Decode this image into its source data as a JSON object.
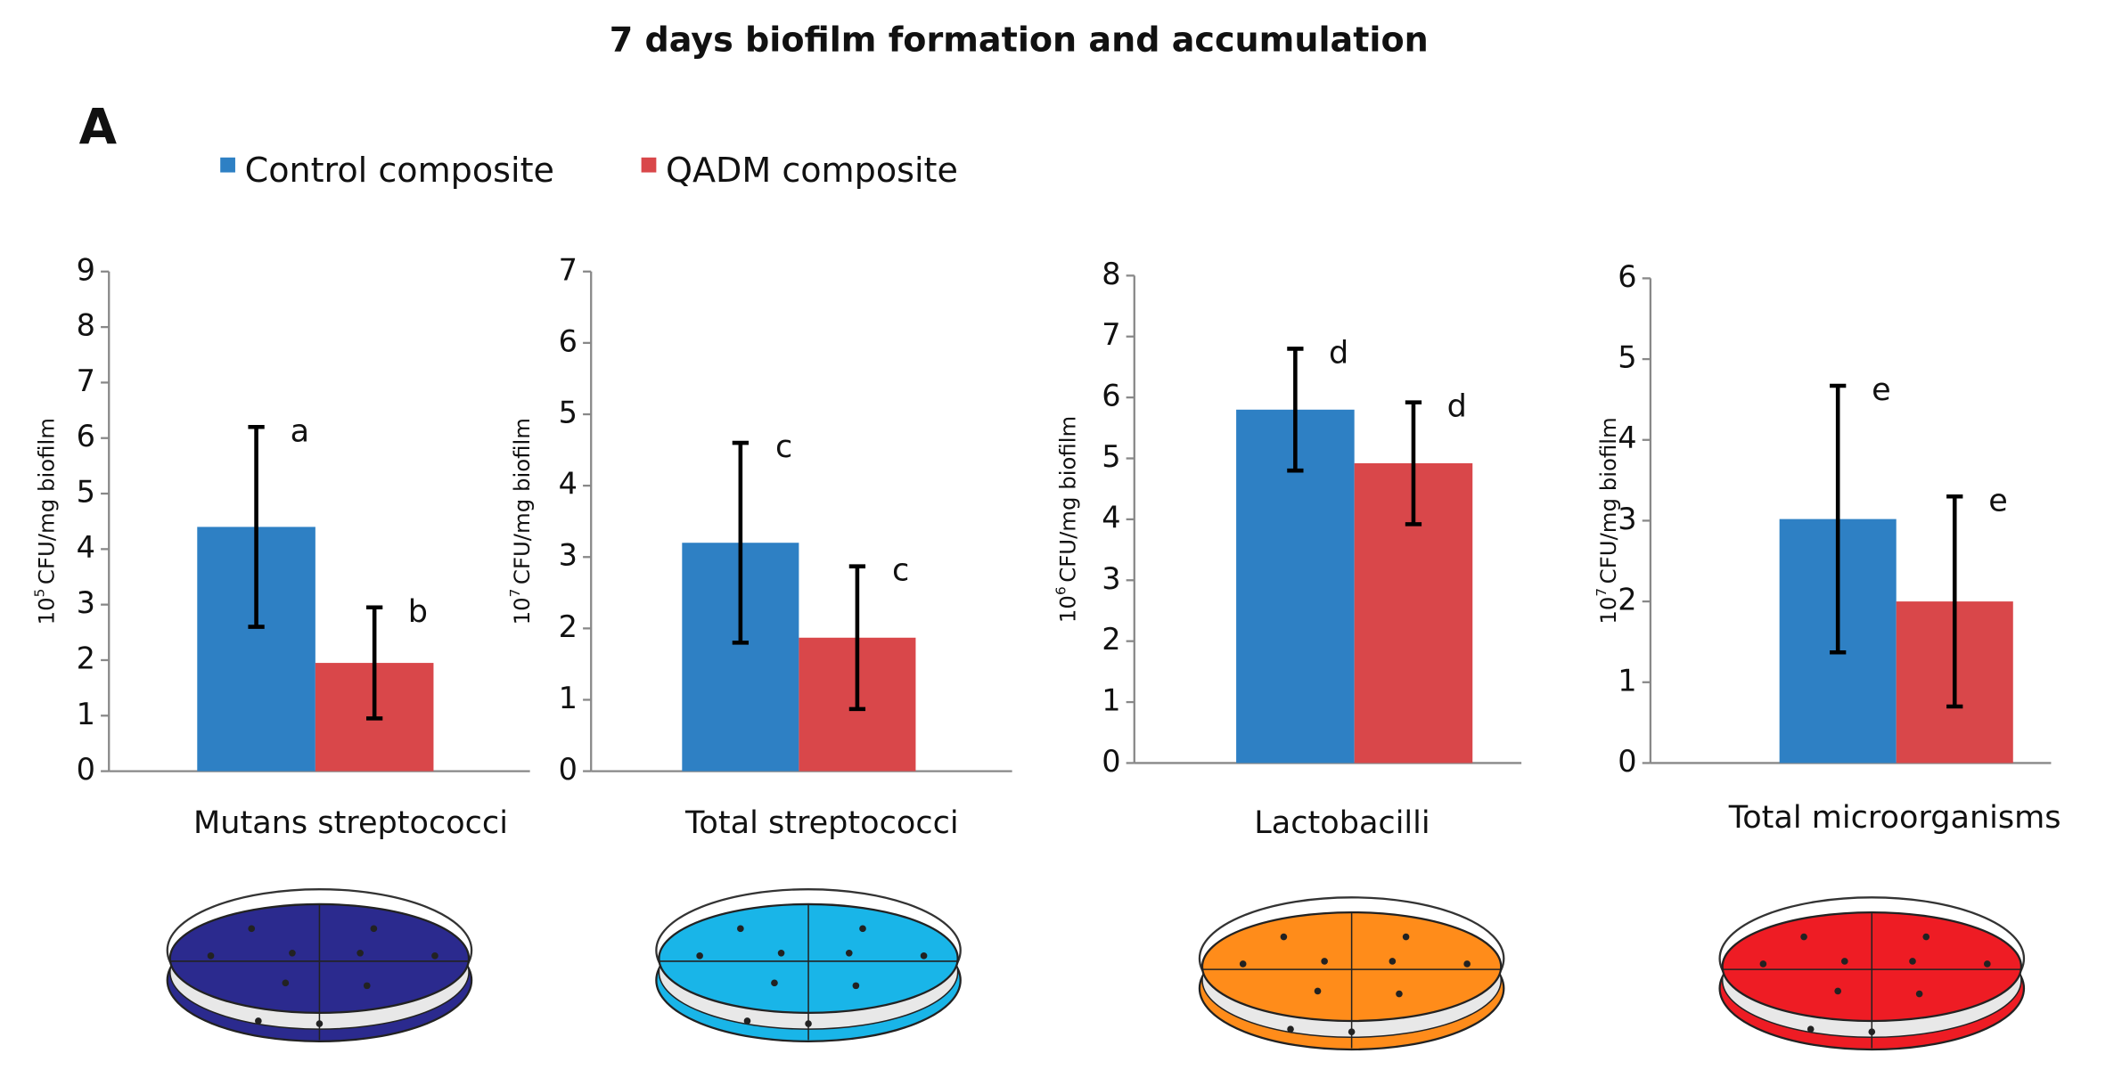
{
  "title": "7 days biofilm formation and accumulation",
  "panel": "A",
  "legend": [
    {
      "name": "Control composite",
      "color": "#2e80c4"
    },
    {
      "name": "QADM composite",
      "color": "#d9474a"
    }
  ],
  "chart_data": [
    {
      "type": "bar",
      "categories": [
        "Mutans streptococci"
      ],
      "ylabel": {
        "base": "10",
        "exp": "5",
        "unit": "CFU/mg biofilm"
      },
      "ylim": [
        0,
        9
      ],
      "yticks": [
        0,
        1,
        2,
        3,
        4,
        5,
        6,
        7,
        8,
        9
      ],
      "series": [
        {
          "values": [
            4.4
          ],
          "errors": [
            1.8
          ],
          "labels": [
            "a"
          ]
        },
        {
          "values": [
            1.95
          ],
          "errors": [
            1.0
          ],
          "labels": [
            "b"
          ]
        }
      ]
    },
    {
      "type": "bar",
      "categories": [
        "Total streptococci"
      ],
      "ylabel": {
        "base": "10",
        "exp": "7",
        "unit": "CFU/mg biofilm"
      },
      "ylim": [
        0,
        7
      ],
      "yticks": [
        0,
        1,
        2,
        3,
        4,
        5,
        6,
        7
      ],
      "series": [
        {
          "values": [
            3.2
          ],
          "errors": [
            1.4
          ],
          "labels": [
            "c"
          ]
        },
        {
          "values": [
            1.87
          ],
          "errors": [
            1.0
          ],
          "labels": [
            "c"
          ]
        }
      ]
    },
    {
      "type": "bar",
      "categories": [
        "Lactobacilli"
      ],
      "ylabel": {
        "base": "10",
        "exp": "6",
        "unit": "CFU/mg biofilm"
      },
      "ylim": [
        0,
        8
      ],
      "yticks": [
        0,
        1,
        2,
        3,
        4,
        5,
        6,
        7,
        8
      ],
      "series": [
        {
          "values": [
            5.8
          ],
          "errors": [
            1.0
          ],
          "labels": [
            "d"
          ]
        },
        {
          "values": [
            4.92
          ],
          "errors": [
            1.0
          ],
          "labels": [
            "d"
          ]
        }
      ]
    },
    {
      "type": "bar",
      "categories": [
        "Total microorganisms"
      ],
      "ylabel": {
        "base": "10",
        "exp": "7",
        "unit": "CFU/mg biofilm"
      },
      "ylim": [
        0,
        6
      ],
      "yticks": [
        0,
        1,
        2,
        3,
        4,
        5,
        6
      ],
      "series": [
        {
          "values": [
            3.02
          ],
          "errors": [
            1.65
          ],
          "labels": [
            "e"
          ]
        },
        {
          "values": [
            2.0
          ],
          "errors": [
            1.3
          ],
          "labels": [
            "e"
          ]
        }
      ]
    }
  ]
}
